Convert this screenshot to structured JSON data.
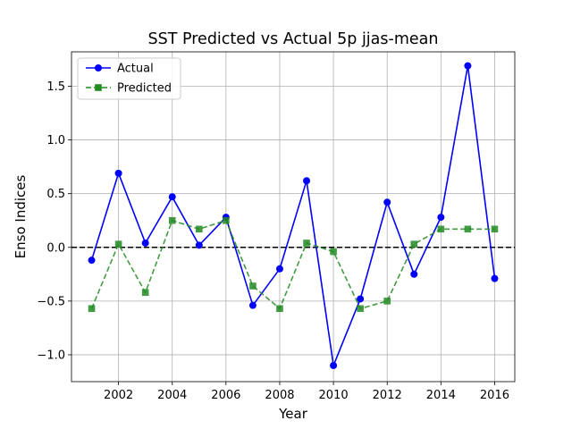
{
  "chart_data": {
    "type": "line",
    "title": "SST Predicted vs Actual 5p jjas-mean",
    "xlabel": "Year",
    "ylabel": "Enso Indices",
    "x": [
      2001,
      2002,
      2003,
      2004,
      2005,
      2006,
      2007,
      2008,
      2009,
      2010,
      2011,
      2012,
      2013,
      2014,
      2015,
      2016
    ],
    "xlim": [
      2000.25,
      2016.75
    ],
    "ylim": [
      -1.25,
      1.82
    ],
    "xticks": [
      2002,
      2004,
      2006,
      2008,
      2010,
      2012,
      2014,
      2016
    ],
    "yticks": [
      -1.0,
      -0.5,
      0.0,
      0.5,
      1.0,
      1.5
    ],
    "ytick_labels": [
      "−1.0",
      "−0.5",
      "0.0",
      "0.5",
      "1.0",
      "1.5"
    ],
    "grid": true,
    "legend_position": "top-left",
    "reference_line": {
      "y": 0,
      "style": "dashed",
      "color": "#000000"
    },
    "series": [
      {
        "name": "Actual",
        "color": "#0000ff",
        "line_style": "solid",
        "marker": "circle",
        "values": [
          -0.12,
          0.69,
          0.04,
          0.47,
          0.02,
          0.28,
          -0.54,
          -0.2,
          0.62,
          -1.1,
          -0.48,
          0.42,
          -0.25,
          0.28,
          1.69,
          -0.29
        ]
      },
      {
        "name": "Predicted",
        "color": "#228b22",
        "line_style": "dashed",
        "marker": "square",
        "values": [
          -0.57,
          0.03,
          -0.42,
          0.25,
          0.17,
          0.25,
          -0.36,
          -0.57,
          0.04,
          -0.04,
          -0.57,
          -0.5,
          0.03,
          0.17,
          0.17,
          0.17
        ]
      }
    ]
  }
}
